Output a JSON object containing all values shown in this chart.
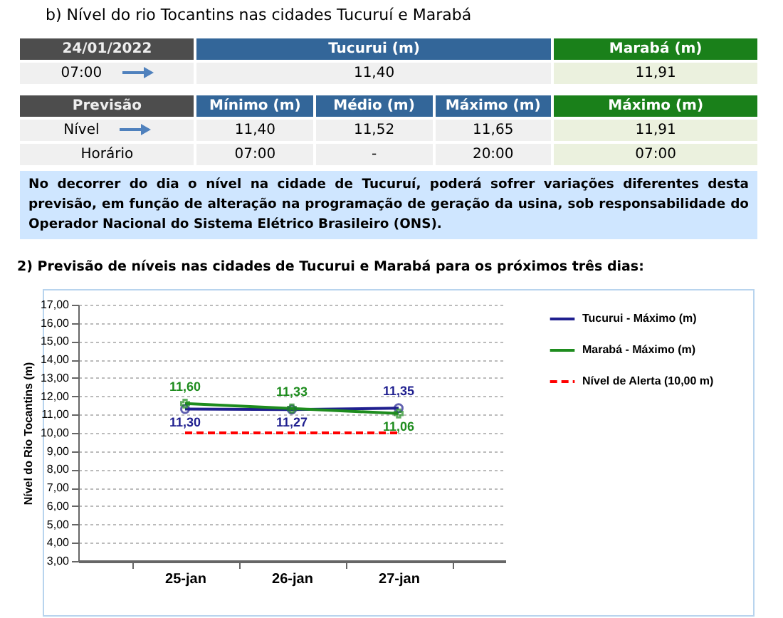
{
  "chart_data": [
    {
      "type": "other",
      "title": "b)    Nível do rio Tocantins nas cidades Tucuruí e Marabá",
      "annotations": [
        "24/01/2022",
        "Tucurui (m)",
        "Marabá (m)",
        "07:00",
        "11,40",
        "11,91",
        "Previsão",
        "Mínimo (m)",
        "Médio (m)",
        "Máximo (m)",
        "Máximo (m)",
        "Nível",
        "11,40",
        "11,52",
        "11,65",
        "11,91",
        "Horário",
        "07:00",
        "-",
        "20:00",
        "07:00",
        "No decorrer do dia o nível na cidade de Tucuruí, poderá sofrer variações diferentes desta previsão, em função de alteração na programação de geração da usina, sob responsabilidade do Operador Nacional do Sistema Elétrico Brasileiro (ONS)."
      ]
    },
    {
      "type": "line",
      "title": "2)   Previsão de níveis nas cidades de Tucurui e Marabá para os próximos três dias:",
      "ylabel": "Nível do Rio Tocantins (m)",
      "categories": [
        "25-jan",
        "26-jan",
        "27-jan"
      ],
      "series": [
        {
          "name": "Tucurui - Máximo (m)",
          "color": "#1f1f8f",
          "values": [
            11.3,
            11.27,
            11.35
          ],
          "value_labels": [
            "11,30",
            "11,27",
            "11,35"
          ],
          "marker": "circle",
          "line_style": "solid"
        },
        {
          "name": "Marabá - Máximo (m)",
          "color": "#1e8c1e",
          "values": [
            11.6,
            11.33,
            11.06
          ],
          "value_labels": [
            "11,60",
            "11,33",
            "11,06"
          ],
          "marker": "cross",
          "line_style": "solid"
        },
        {
          "name": "Nível de Alerta (10,00 m)",
          "color": "#ff0000",
          "values": [
            10,
            10,
            10
          ],
          "marker": "none",
          "line_style": "dashed"
        }
      ],
      "ylim": [
        3,
        17
      ],
      "yticks": [
        {
          "value": 3,
          "label": "3,00"
        },
        {
          "value": 4,
          "label": "4,00"
        },
        {
          "value": 5,
          "label": "5,00"
        },
        {
          "value": 6,
          "label": "6,00"
        },
        {
          "value": 7,
          "label": "7,00"
        },
        {
          "value": 8,
          "label": "8,00"
        },
        {
          "value": 9,
          "label": "9,00"
        },
        {
          "value": 10,
          "label": "10,00"
        },
        {
          "value": 11,
          "label": "11,00"
        },
        {
          "value": 12,
          "label": "12,00"
        },
        {
          "value": 13,
          "label": "13,00"
        },
        {
          "value": 14,
          "label": "14,00"
        },
        {
          "value": 15,
          "label": "15,00"
        },
        {
          "value": 16,
          "label": "16,00"
        },
        {
          "value": 17,
          "label": "17,00"
        }
      ],
      "grid": "y",
      "legend": "right"
    }
  ]
}
